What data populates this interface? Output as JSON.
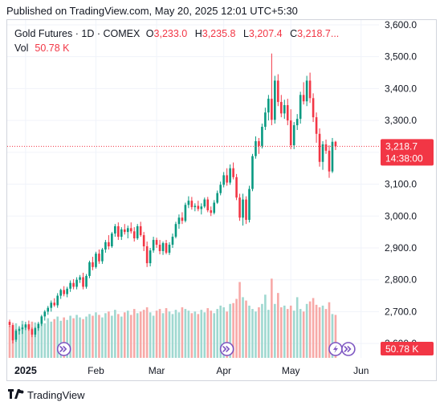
{
  "header": {
    "text": "Published on TradingView.com, May 20, 2025 12:01 UTC+5:30"
  },
  "legend": {
    "symbol": "Gold Futures · 1D · COMEX",
    "open_label": "O",
    "open": "3,233.0",
    "high_label": "H",
    "high": "3,235.8",
    "low_label": "L",
    "low": "3,207.4",
    "close_label": "C",
    "close": "3,218.7",
    "more": "...",
    "vol_label": "Vol",
    "vol_value": "50.78 K"
  },
  "price_tag": {
    "price": "3,218.7",
    "countdown": "14:38:00"
  },
  "volume_tag": "50.78 K",
  "footer": {
    "brand": "TradingView"
  },
  "colors": {
    "up": "#089981",
    "down": "#f23645",
    "vol_up": "#9fd8d0",
    "vol_down": "#f7a9a7",
    "event": "#7e57c2"
  },
  "event_icons": [
    "dividend-arrow-icon",
    "dividend-arrow-icon",
    "split-lightning-icon",
    "dividend-arrow-icon"
  ],
  "chart_data": {
    "type": "candlestick",
    "y_ticks": [
      "3,600.0",
      "3,500.0",
      "3,400.0",
      "3,300.0",
      "3,200.0",
      "3,100.0",
      "3,000.0",
      "2,900.0",
      "2,800.0",
      "2,700.0",
      "2,600.0"
    ],
    "y_tick_values": [
      3600,
      3500,
      3400,
      3300,
      3200,
      3100,
      3000,
      2900,
      2800,
      2700,
      2600
    ],
    "ylim": [
      2555,
      3615
    ],
    "x_ticks": [
      {
        "label": "2025",
        "bar": 5,
        "bold": true
      },
      {
        "label": "Feb",
        "bar": 27
      },
      {
        "label": "Mar",
        "bar": 46
      },
      {
        "label": "Apr",
        "bar": 67
      },
      {
        "label": "May",
        "bar": 88
      },
      {
        "label": "Jun",
        "bar": 110
      }
    ],
    "last_close": 3218.7,
    "candles": [
      [
        2668,
        2675,
        2652,
        2658
      ],
      [
        2658,
        2665,
        2600,
        2610
      ],
      [
        2612,
        2645,
        2605,
        2640
      ],
      [
        2640,
        2655,
        2628,
        2645
      ],
      [
        2645,
        2660,
        2630,
        2650
      ],
      [
        2650,
        2668,
        2642,
        2660
      ],
      [
        2660,
        2672,
        2640,
        2645
      ],
      [
        2645,
        2650,
        2620,
        2628
      ],
      [
        2628,
        2652,
        2620,
        2648
      ],
      [
        2648,
        2668,
        2640,
        2662
      ],
      [
        2662,
        2690,
        2655,
        2685
      ],
      [
        2685,
        2705,
        2672,
        2700
      ],
      [
        2700,
        2718,
        2690,
        2712
      ],
      [
        2712,
        2735,
        2700,
        2728
      ],
      [
        2728,
        2742,
        2715,
        2720
      ],
      [
        2720,
        2758,
        2712,
        2750
      ],
      [
        2750,
        2772,
        2740,
        2768
      ],
      [
        2768,
        2780,
        2748,
        2755
      ],
      [
        2755,
        2778,
        2745,
        2772
      ],
      [
        2772,
        2798,
        2762,
        2790
      ],
      [
        2790,
        2802,
        2770,
        2778
      ],
      [
        2778,
        2808,
        2770,
        2800
      ],
      [
        2800,
        2815,
        2790,
        2808
      ],
      [
        2808,
        2822,
        2770,
        2778
      ],
      [
        2778,
        2818,
        2772,
        2812
      ],
      [
        2812,
        2860,
        2805,
        2855
      ],
      [
        2855,
        2872,
        2830,
        2840
      ],
      [
        2840,
        2888,
        2835,
        2882
      ],
      [
        2882,
        2895,
        2850,
        2858
      ],
      [
        2858,
        2900,
        2850,
        2895
      ],
      [
        2895,
        2925,
        2885,
        2918
      ],
      [
        2918,
        2940,
        2895,
        2905
      ],
      [
        2905,
        2950,
        2900,
        2945
      ],
      [
        2945,
        2975,
        2935,
        2968
      ],
      [
        2968,
        2980,
        2925,
        2935
      ],
      [
        2935,
        2965,
        2925,
        2958
      ],
      [
        2958,
        2975,
        2942,
        2950
      ],
      [
        2950,
        2970,
        2930,
        2962
      ],
      [
        2962,
        2980,
        2945,
        2952
      ],
      [
        2952,
        2965,
        2920,
        2930
      ],
      [
        2930,
        2975,
        2925,
        2968
      ],
      [
        2968,
        2982,
        2935,
        2940
      ],
      [
        2940,
        2950,
        2890,
        2905
      ],
      [
        2905,
        2920,
        2840,
        2852
      ],
      [
        2852,
        2900,
        2842,
        2892
      ],
      [
        2892,
        2935,
        2885,
        2925
      ],
      [
        2925,
        2932,
        2900,
        2910
      ],
      [
        2910,
        2925,
        2880,
        2890
      ],
      [
        2890,
        2920,
        2878,
        2915
      ],
      [
        2915,
        2925,
        2880,
        2885
      ],
      [
        2885,
        2918,
        2878,
        2910
      ],
      [
        2910,
        2945,
        2900,
        2935
      ],
      [
        2935,
        2982,
        2930,
        2975
      ],
      [
        2975,
        3005,
        2960,
        2995
      ],
      [
        2995,
        3012,
        2975,
        2985
      ],
      [
        2985,
        3042,
        2980,
        3035
      ],
      [
        3035,
        3062,
        3025,
        3048
      ],
      [
        3048,
        3060,
        3020,
        3028
      ],
      [
        3028,
        3040,
        3015,
        3032
      ],
      [
        3032,
        3048,
        3015,
        3022
      ],
      [
        3022,
        3040,
        3005,
        3030
      ],
      [
        3030,
        3058,
        3025,
        3052
      ],
      [
        3052,
        3060,
        3012,
        3018
      ],
      [
        3018,
        3030,
        3000,
        3010
      ],
      [
        3010,
        3050,
        3005,
        3042
      ],
      [
        3042,
        3080,
        3038,
        3072
      ],
      [
        3072,
        3108,
        3065,
        3098
      ],
      [
        3098,
        3138,
        3090,
        3128
      ],
      [
        3128,
        3150,
        3095,
        3105
      ],
      [
        3105,
        3162,
        3098,
        3150
      ],
      [
        3150,
        3168,
        3115,
        3122
      ],
      [
        3122,
        3132,
        3050,
        3058
      ],
      [
        3058,
        3070,
        2985,
        2995
      ],
      [
        2995,
        3070,
        2970,
        3052
      ],
      [
        3052,
        3062,
        2975,
        2988
      ],
      [
        2988,
        3095,
        2980,
        3085
      ],
      [
        3085,
        3195,
        3078,
        3188
      ],
      [
        3188,
        3250,
        3180,
        3235
      ],
      [
        3235,
        3245,
        3195,
        3220
      ],
      [
        3220,
        3290,
        3212,
        3280
      ],
      [
        3280,
        3340,
        3270,
        3325
      ],
      [
        3325,
        3380,
        3300,
        3368
      ],
      [
        3368,
        3510,
        3285,
        3302
      ],
      [
        3302,
        3440,
        3290,
        3425
      ],
      [
        3425,
        3445,
        3345,
        3358
      ],
      [
        3358,
        3380,
        3310,
        3322
      ],
      [
        3322,
        3365,
        3305,
        3348
      ],
      [
        3348,
        3368,
        3285,
        3300
      ],
      [
        3300,
        3335,
        3210,
        3222
      ],
      [
        3222,
        3295,
        3210,
        3285
      ],
      [
        3285,
        3320,
        3270,
        3305
      ],
      [
        3305,
        3390,
        3290,
        3380
      ],
      [
        3380,
        3420,
        3350,
        3360
      ],
      [
        3360,
        3440,
        3345,
        3425
      ],
      [
        3425,
        3450,
        3355,
        3370
      ],
      [
        3370,
        3385,
        3295,
        3310
      ],
      [
        3310,
        3325,
        3230,
        3258
      ],
      [
        3258,
        3275,
        3155,
        3170
      ],
      [
        3170,
        3235,
        3145,
        3225
      ],
      [
        3225,
        3240,
        3195,
        3205
      ],
      [
        3205,
        3222,
        3120,
        3140
      ],
      [
        3140,
        3245,
        3135,
        3233
      ],
      [
        3233,
        3236,
        3207,
        3219
      ]
    ],
    "volume": [
      38,
      34,
      41,
      36,
      44,
      39,
      40,
      43,
      42,
      38,
      45,
      41,
      47,
      43,
      46,
      49,
      44,
      48,
      45,
      50,
      47,
      51,
      48,
      46,
      49,
      52,
      50,
      54,
      51,
      48,
      53,
      55,
      50,
      57,
      52,
      49,
      54,
      56,
      51,
      58,
      53,
      55,
      57,
      60,
      54,
      50,
      56,
      58,
      53,
      59,
      55,
      52,
      57,
      54,
      60,
      58,
      56,
      53,
      55,
      52,
      57,
      54,
      59,
      56,
      53,
      58,
      62,
      60,
      55,
      64,
      65,
      70,
      90,
      72,
      68,
      62,
      58,
      55,
      60,
      64,
      75,
      57,
      94,
      64,
      77,
      60,
      62,
      58,
      62,
      56,
      72,
      58,
      55,
      64,
      67,
      71,
      63,
      60,
      62,
      58,
      66,
      52,
      51
    ],
    "volume_max": 100,
    "event_bars": [
      17,
      68,
      102,
      106
    ]
  }
}
